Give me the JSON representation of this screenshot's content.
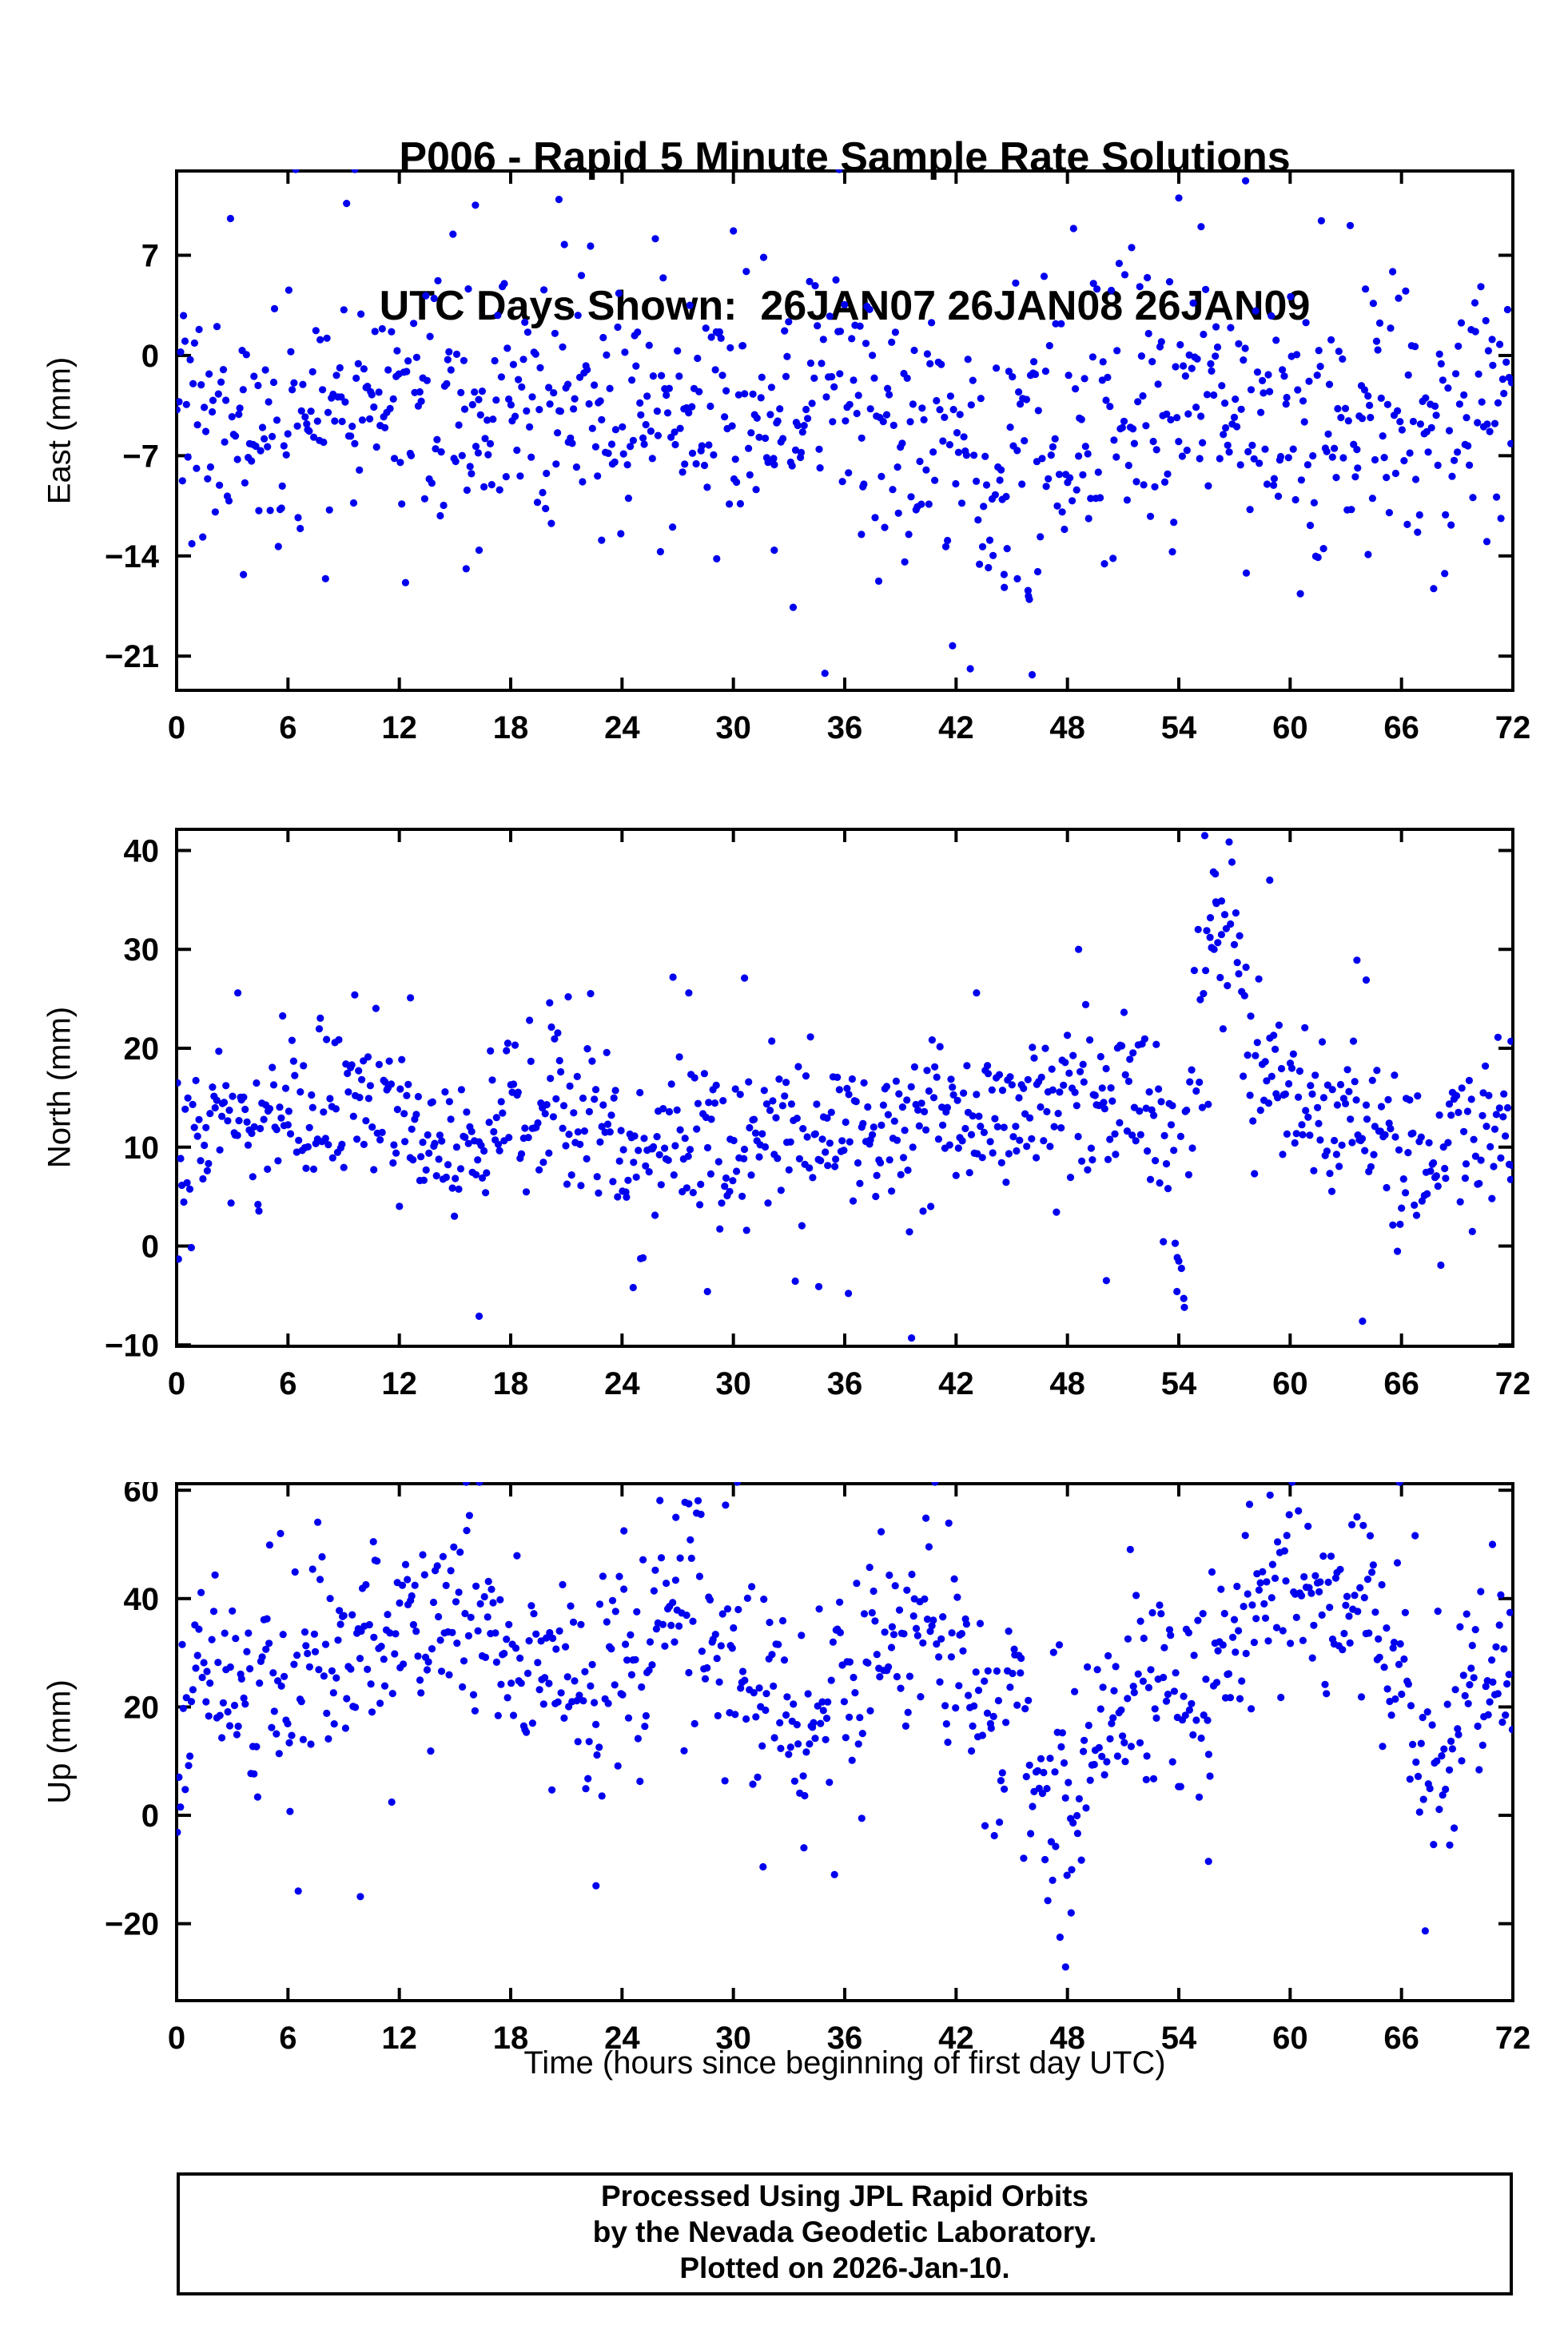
{
  "title": {
    "line1": "P006 - Rapid 5 Minute Sample Rate Solutions",
    "line2": "UTC Days Shown:  26JAN07 26JAN08 26JAN09"
  },
  "xlabel": "Time (hours since beginning of first day UTC)",
  "footer": {
    "line1": "Processed Using JPL Rapid Orbits",
    "line2": "by the Nevada Geodetic Laboratory.",
    "line3": "Plotted on 2026-Jan-10."
  },
  "colors": {
    "marker": "#0000EE",
    "axis": "#000000",
    "background": "#FFFFFF"
  },
  "chart_data": {
    "type": "scatter",
    "title": "P006 - Rapid 5 Minute Sample Rate Solutions",
    "subtitle": "UTC Days Shown:  26JAN07 26JAN08 26JAN09",
    "xlabel": "Time (hours since beginning of first day UTC)",
    "x": {
      "range": [
        0,
        72
      ],
      "ticks": [
        0,
        6,
        12,
        18,
        24,
        30,
        36,
        42,
        48,
        54,
        60,
        66,
        72
      ]
    },
    "marker_radius": 4.6,
    "panels": [
      {
        "name": "east",
        "ylabel": "East (mm)",
        "ylim": [
          -23.5,
          13.0
        ],
        "yticks": [
          7,
          0,
          -7,
          -14,
          -21
        ],
        "n": 850,
        "seed": 7,
        "wide_prob": 0.05,
        "wide_factor": 1.9,
        "mean_keypoints": [
          [
            0,
            -3.5
          ],
          [
            3,
            -5
          ],
          [
            6,
            -4
          ],
          [
            9,
            -2.5
          ],
          [
            12,
            -3.5
          ],
          [
            15,
            -5
          ],
          [
            18,
            -2.5
          ],
          [
            21,
            -2.8
          ],
          [
            24,
            -3.5
          ],
          [
            27,
            -4
          ],
          [
            30,
            -3
          ],
          [
            33,
            -3.5
          ],
          [
            36,
            -3
          ],
          [
            39,
            -5
          ],
          [
            42,
            -5.5
          ],
          [
            45,
            -7
          ],
          [
            48,
            -4
          ],
          [
            51,
            -3
          ],
          [
            54,
            -1.8
          ],
          [
            57,
            -3
          ],
          [
            60,
            -4
          ],
          [
            63,
            -5.5
          ],
          [
            66,
            -4.5
          ],
          [
            69,
            -3.5
          ],
          [
            72,
            -3
          ]
        ],
        "std_keypoints": [
          [
            0,
            4.2
          ],
          [
            8,
            4.0
          ],
          [
            20,
            4.3
          ],
          [
            40,
            4.5
          ],
          [
            45,
            5.5
          ],
          [
            48,
            4.5
          ],
          [
            72,
            4.0
          ]
        ],
        "outliers": [
          [
            9.6,
            13.4
          ],
          [
            35.7,
            13.6
          ],
          [
            20.6,
            10.9
          ],
          [
            57.6,
            12.2
          ],
          [
            16.1,
            10.5
          ],
          [
            55.2,
            9.0
          ],
          [
            54.0,
            11.0
          ],
          [
            30.0,
            8.7
          ],
          [
            46.1,
            -22.3
          ],
          [
            44.6,
            -16.2
          ],
          [
            45.3,
            -15.6
          ],
          [
            45.9,
            -16.8
          ],
          [
            46.4,
            -15.1
          ],
          [
            15.6,
            -14.9
          ],
          [
            16.3,
            -13.6
          ],
          [
            3.6,
            -15.3
          ],
          [
            29.1,
            -14.2
          ],
          [
            32.2,
            -13.6
          ],
          [
            64.2,
            -13.9
          ],
          [
            70.6,
            -13.0
          ],
          [
            61.5,
            -14.1
          ],
          [
            22.9,
            -12.9
          ],
          [
            36.9,
            -12.5
          ]
        ]
      },
      {
        "name": "north",
        "ylabel": "North (mm)",
        "ylim": [
          -10.3,
          42.3
        ],
        "yticks": [
          -10,
          0,
          10,
          20,
          30,
          40
        ],
        "n": 850,
        "seed": 13,
        "wide_prob": 0.05,
        "wide_factor": 1.9,
        "mean_keypoints": [
          [
            0,
            8
          ],
          [
            1,
            11
          ],
          [
            3,
            12
          ],
          [
            6,
            14
          ],
          [
            9,
            15
          ],
          [
            12,
            13
          ],
          [
            14,
            10
          ],
          [
            16,
            9
          ],
          [
            18,
            14
          ],
          [
            20,
            14
          ],
          [
            22,
            13
          ],
          [
            24,
            11
          ],
          [
            26,
            10
          ],
          [
            28,
            10
          ],
          [
            30,
            9.5
          ],
          [
            32,
            11
          ],
          [
            34,
            11
          ],
          [
            36,
            12
          ],
          [
            38,
            10
          ],
          [
            40,
            12
          ],
          [
            42,
            14
          ],
          [
            44,
            15
          ],
          [
            46,
            15
          ],
          [
            48,
            14
          ],
          [
            50,
            13
          ],
          [
            52,
            14
          ],
          [
            53,
            10
          ],
          [
            54,
            6
          ],
          [
            55,
            18
          ],
          [
            55.8,
            28
          ],
          [
            56.5,
            30
          ],
          [
            57.2,
            26
          ],
          [
            58,
            20
          ],
          [
            59,
            16
          ],
          [
            60,
            15
          ],
          [
            61,
            14
          ],
          [
            62,
            13
          ],
          [
            63,
            13
          ],
          [
            64,
            14
          ],
          [
            65,
            11
          ],
          [
            66,
            9
          ],
          [
            67,
            8
          ],
          [
            68,
            10
          ],
          [
            69,
            13
          ],
          [
            70,
            12
          ],
          [
            71,
            11
          ],
          [
            72,
            10
          ]
        ],
        "std_keypoints": [
          [
            0,
            3.8
          ],
          [
            50,
            3.8
          ],
          [
            54,
            6
          ],
          [
            56,
            7
          ],
          [
            58,
            5
          ],
          [
            60,
            3.8
          ],
          [
            72,
            3.8
          ]
        ],
        "outliers": [
          [
            55.4,
            41.5
          ],
          [
            58.9,
            37.0
          ],
          [
            56.0,
            34.8
          ],
          [
            55.7,
            33.2
          ],
          [
            56.3,
            31.5
          ],
          [
            55.9,
            30.0
          ],
          [
            48.6,
            30.0
          ],
          [
            63.6,
            28.9
          ],
          [
            30.6,
            27.1
          ],
          [
            3.3,
            25.6
          ],
          [
            9.6,
            25.4
          ],
          [
            12.6,
            25.1
          ],
          [
            20.1,
            24.6
          ],
          [
            21.1,
            25.2
          ],
          [
            27.6,
            25.6
          ],
          [
            43.1,
            25.6
          ],
          [
            64.1,
            26.9
          ],
          [
            39.6,
            -9.3
          ],
          [
            54.3,
            -6.2
          ],
          [
            53.9,
            -4.6
          ],
          [
            16.3,
            -7.1
          ],
          [
            24.6,
            -4.2
          ],
          [
            28.6,
            -4.6
          ],
          [
            34.6,
            -4.1
          ],
          [
            63.9,
            -7.6
          ],
          [
            71.9,
            20.7
          ],
          [
            50.1,
            -3.5
          ],
          [
            36.2,
            -4.8
          ]
        ]
      },
      {
        "name": "up",
        "ylabel": "Up (mm)",
        "ylim": [
          -34.5,
          61.5
        ],
        "yticks": [
          -20,
          0,
          20,
          40,
          60
        ],
        "n": 850,
        "seed": 21,
        "wide_prob": 0.05,
        "wide_factor": 1.9,
        "mean_keypoints": [
          [
            0,
            8
          ],
          [
            1,
            24
          ],
          [
            2,
            28
          ],
          [
            4,
            22
          ],
          [
            6,
            25
          ],
          [
            8,
            30
          ],
          [
            10,
            33
          ],
          [
            12,
            34
          ],
          [
            14,
            34
          ],
          [
            15,
            38
          ],
          [
            16,
            36
          ],
          [
            18,
            28
          ],
          [
            20,
            26
          ],
          [
            22,
            22
          ],
          [
            24,
            26
          ],
          [
            26,
            38
          ],
          [
            27,
            42
          ],
          [
            28,
            40
          ],
          [
            30,
            30
          ],
          [
            32,
            20
          ],
          [
            33,
            16
          ],
          [
            34,
            18
          ],
          [
            36,
            25
          ],
          [
            38,
            30
          ],
          [
            39,
            33
          ],
          [
            40,
            34
          ],
          [
            41,
            33
          ],
          [
            42,
            28
          ],
          [
            43,
            22
          ],
          [
            44,
            20
          ],
          [
            45,
            18
          ],
          [
            46,
            12
          ],
          [
            47,
            4
          ],
          [
            48,
            0
          ],
          [
            49,
            10
          ],
          [
            50,
            18
          ],
          [
            51,
            22
          ],
          [
            52,
            24
          ],
          [
            53,
            26
          ],
          [
            54,
            24
          ],
          [
            55,
            22
          ],
          [
            56,
            28
          ],
          [
            57,
            33
          ],
          [
            58,
            38
          ],
          [
            59,
            42
          ],
          [
            60,
            44
          ],
          [
            61,
            44
          ],
          [
            62,
            40
          ],
          [
            63,
            38
          ],
          [
            64,
            36
          ],
          [
            65,
            36
          ],
          [
            66,
            25
          ],
          [
            67,
            15
          ],
          [
            68,
            10
          ],
          [
            69,
            15
          ],
          [
            70,
            24
          ],
          [
            71,
            26
          ],
          [
            72,
            22
          ]
        ],
        "std_keypoints": [
          [
            0,
            10
          ],
          [
            10,
            10
          ],
          [
            20,
            9
          ],
          [
            30,
            11
          ],
          [
            40,
            9
          ],
          [
            47,
            11
          ],
          [
            50,
            9
          ],
          [
            57,
            9
          ],
          [
            62,
            8
          ],
          [
            66,
            10
          ],
          [
            72,
            9
          ]
        ],
        "outliers": [
          [
            15.6,
            63.0
          ],
          [
            65.9,
            64.0
          ],
          [
            27.6,
            57.5
          ],
          [
            26.9,
            55.0
          ],
          [
            5.6,
            52.0
          ],
          [
            10.6,
            50.5
          ],
          [
            70.9,
            50.0
          ],
          [
            24.1,
            52.5
          ],
          [
            47.9,
            -28.0
          ],
          [
            47.6,
            -22.5
          ],
          [
            22.6,
            -13.0
          ],
          [
            31.6,
            -9.5
          ],
          [
            55.6,
            -8.5
          ],
          [
            68.6,
            -5.5
          ],
          [
            9.9,
            -15.0
          ],
          [
            48.2,
            -18.0
          ],
          [
            47.2,
            -12.0
          ],
          [
            33.8,
            -6.0
          ]
        ]
      }
    ]
  }
}
